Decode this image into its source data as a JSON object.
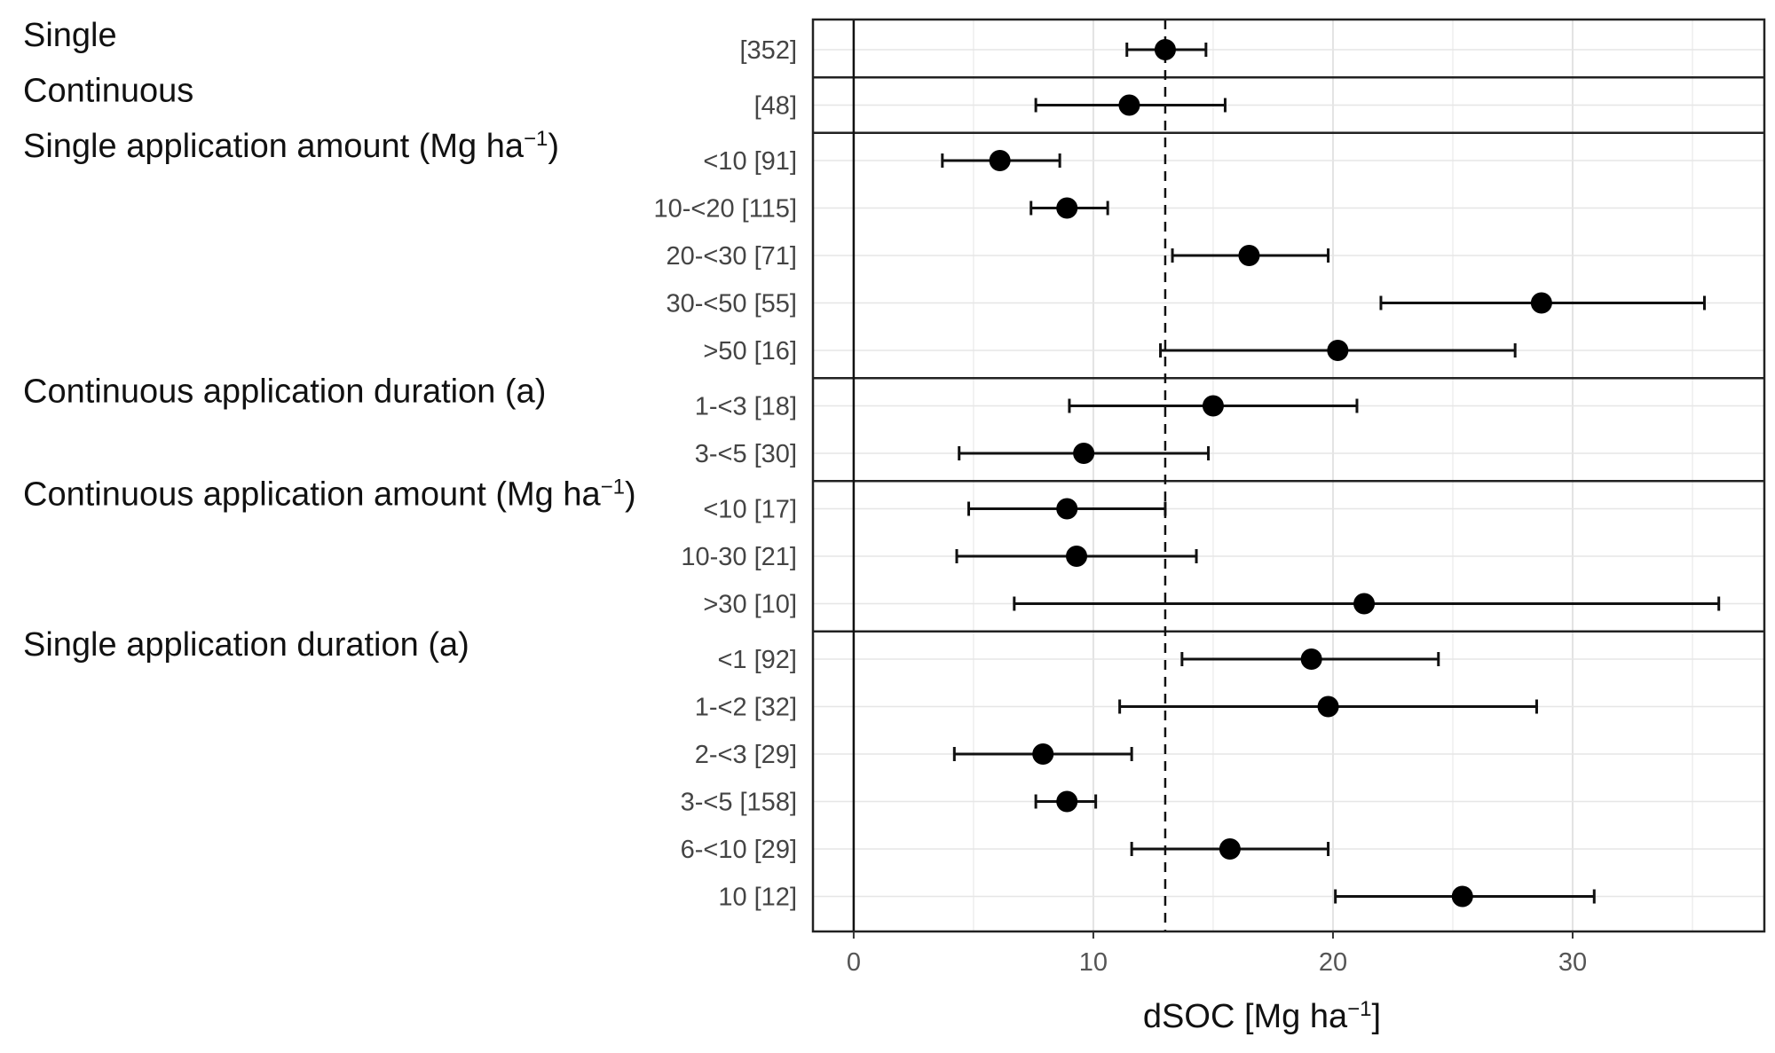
{
  "chart_data": {
    "type": "forest",
    "xlabel": "dSOC [Mg ha",
    "xlabel_sup": "−1",
    "xlabel_suffix": "]",
    "xlim": [
      -1.7,
      38
    ],
    "xticks": [
      0,
      10,
      20,
      30
    ],
    "reference_line": 13,
    "zero_line": 0,
    "grid": true,
    "groups": [
      {
        "label": "Single",
        "label_sup": "",
        "label_suffix": "",
        "rows": [
          {
            "label": "[352]",
            "mean": 13.0,
            "lower": 11.4,
            "upper": 14.7
          }
        ]
      },
      {
        "label": "Continuous",
        "label_sup": "",
        "label_suffix": "",
        "rows": [
          {
            "label": "[48]",
            "mean": 11.5,
            "lower": 7.6,
            "upper": 15.5
          }
        ]
      },
      {
        "label": "Single application amount (Mg ha",
        "label_sup": "−1",
        "label_suffix": ")",
        "rows": [
          {
            "label": "<10 [91]",
            "mean": 6.1,
            "lower": 3.7,
            "upper": 8.6
          },
          {
            "label": "10-<20 [115]",
            "mean": 8.9,
            "lower": 7.4,
            "upper": 10.6
          },
          {
            "label": "20-<30 [71]",
            "mean": 16.5,
            "lower": 13.3,
            "upper": 19.8
          },
          {
            "label": "30-<50 [55]",
            "mean": 28.7,
            "lower": 22.0,
            "upper": 35.5
          },
          {
            "label": ">50 [16]",
            "mean": 20.2,
            "lower": 12.8,
            "upper": 27.6
          }
        ]
      },
      {
        "label": "Continuous application duration (a)",
        "label_sup": "",
        "label_suffix": "",
        "rows": [
          {
            "label": "1-<3 [18]",
            "mean": 15.0,
            "lower": 9.0,
            "upper": 21.0
          },
          {
            "label": "3-<5 [30]",
            "mean": 9.6,
            "lower": 4.4,
            "upper": 14.8
          }
        ]
      },
      {
        "label": "Continuous application amount (Mg ha",
        "label_sup": "−1",
        "label_suffix": ")",
        "rows": [
          {
            "label": "<10 [17]",
            "mean": 8.9,
            "lower": 4.8,
            "upper": 13.0
          },
          {
            "label": "10-30 [21]",
            "mean": 9.3,
            "lower": 4.3,
            "upper": 14.3
          },
          {
            "label": ">30 [10]",
            "mean": 21.3,
            "lower": 6.7,
            "upper": 36.1
          }
        ]
      },
      {
        "label": "Single application duration (a)",
        "label_sup": "",
        "label_suffix": "",
        "rows": [
          {
            "label": "<1 [92]",
            "mean": 19.1,
            "lower": 13.7,
            "upper": 24.4
          },
          {
            "label": "1-<2 [32]",
            "mean": 19.8,
            "lower": 11.1,
            "upper": 28.5
          },
          {
            "label": "2-<3 [29]",
            "mean": 7.9,
            "lower": 4.2,
            "upper": 11.6
          },
          {
            "label": "3-<5 [158]",
            "mean": 8.9,
            "lower": 7.6,
            "upper": 10.1
          },
          {
            "label": "6-<10 [29]",
            "mean": 15.7,
            "lower": 11.6,
            "upper": 19.8
          },
          {
            "label": "10 [12]",
            "mean": 25.4,
            "lower": 20.1,
            "upper": 30.9
          }
        ]
      }
    ]
  }
}
